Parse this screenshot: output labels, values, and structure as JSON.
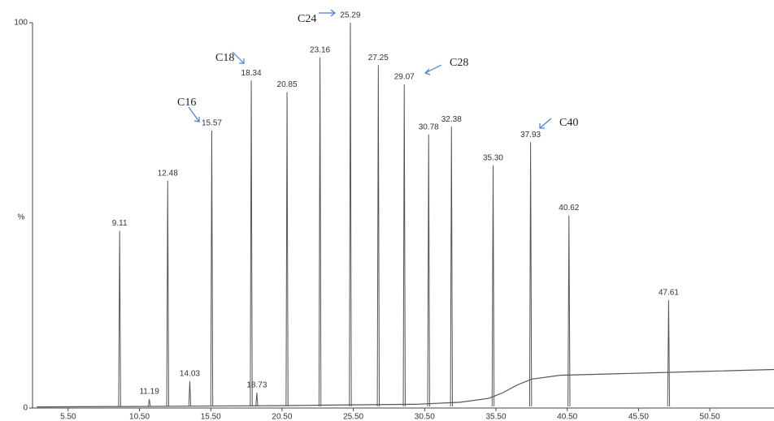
{
  "chart_data": {
    "type": "chromatogram",
    "ylabel": "%",
    "xlim": [
      3.0,
      55.0
    ],
    "xticks": [
      {
        "value": 5.5,
        "label": "5.50"
      },
      {
        "value": 10.5,
        "label": "10.50"
      },
      {
        "value": 15.5,
        "label": "15.50"
      },
      {
        "value": 20.5,
        "label": "20.50"
      },
      {
        "value": 25.5,
        "label": "25.50"
      },
      {
        "value": 30.5,
        "label": "30.50"
      },
      {
        "value": 35.5,
        "label": "35.50"
      },
      {
        "value": 40.5,
        "label": "40.50"
      },
      {
        "value": 45.5,
        "label": "45.50"
      },
      {
        "value": 50.5,
        "label": "50.50"
      }
    ],
    "ylim": [
      0,
      100
    ],
    "yticks": [
      0,
      100
    ],
    "color": "#555555",
    "peaks": {
      "times": [
        9.11,
        11.19,
        12.48,
        14.03,
        15.57,
        18.34,
        18.73,
        20.85,
        23.16,
        25.29,
        27.25,
        29.07,
        30.78,
        32.38,
        35.3,
        37.93,
        40.62,
        47.61
      ],
      "time_labels": [
        "9.11",
        "11.19",
        "12.48",
        "14.03",
        "15.57",
        "18.34",
        "18.73",
        "20.85",
        "23.16",
        "25.29",
        "27.25",
        "29.07",
        "30.78",
        "32.38",
        "35.30",
        "37.93",
        "40.62",
        "47.61"
      ],
      "heights": [
        46,
        2.3,
        59,
        7,
        72,
        85,
        4,
        82,
        91,
        100,
        89,
        84,
        71,
        73,
        63,
        69,
        50,
        28
      ]
    },
    "baseline": {
      "x": [
        3.3,
        10,
        20,
        30,
        33,
        35,
        36,
        37,
        38,
        40,
        45,
        50,
        55
      ],
      "values": [
        0.3,
        0.4,
        0.6,
        1,
        1.5,
        2.5,
        4,
        6,
        7.5,
        8.5,
        9,
        9.5,
        10
      ]
    },
    "annotations": [
      "C16",
      "C18",
      "C24",
      "C28",
      "C40"
    ]
  }
}
